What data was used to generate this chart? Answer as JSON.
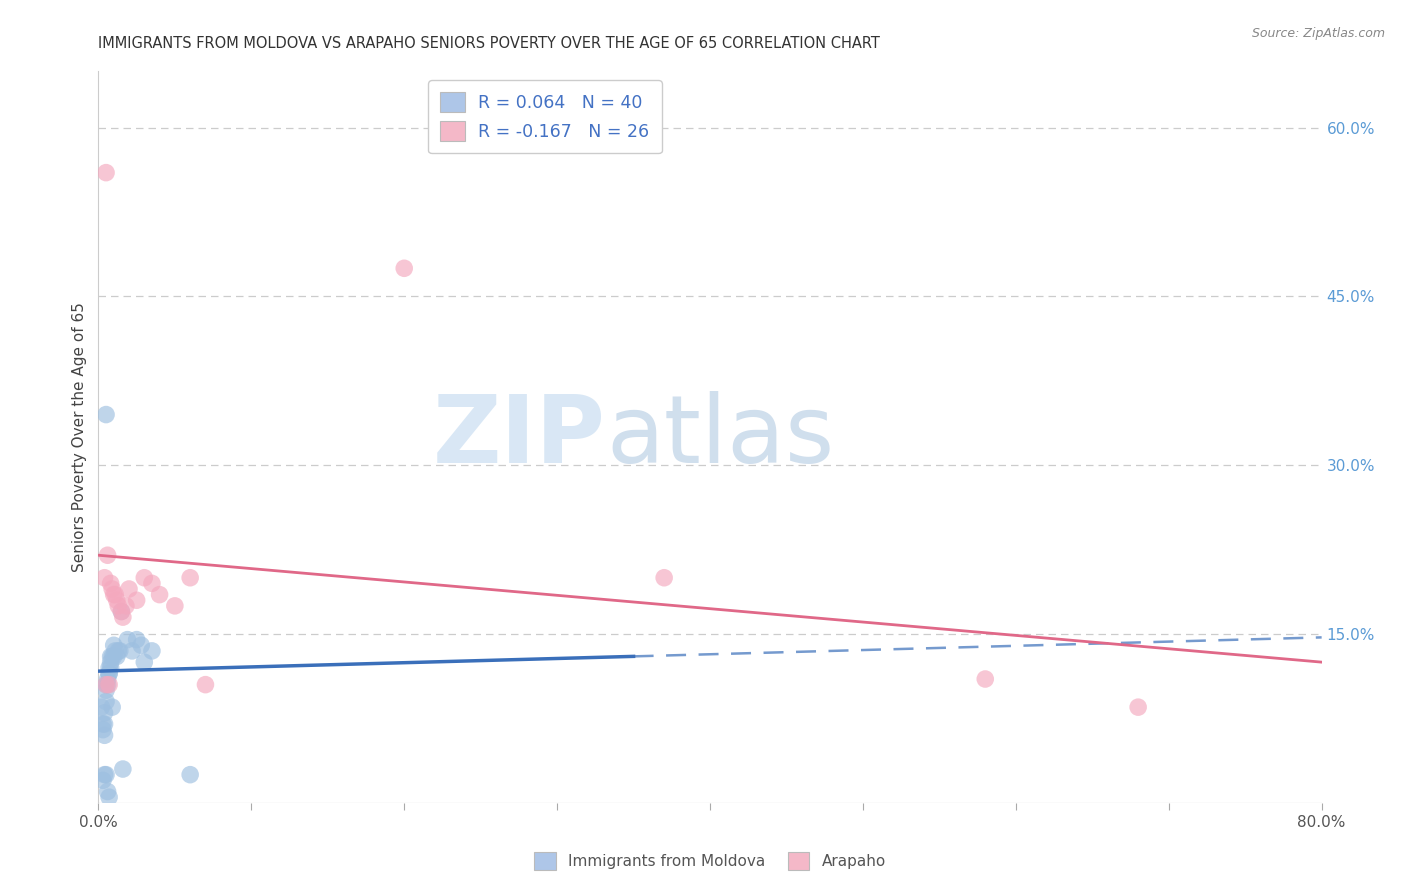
{
  "title": "IMMIGRANTS FROM MOLDOVA VS ARAPAHO SENIORS POVERTY OVER THE AGE OF 65 CORRELATION CHART",
  "source": "Source: ZipAtlas.com",
  "ylabel": "Seniors Poverty Over the Age of 65",
  "xlim": [
    0.0,
    0.8
  ],
  "ylim": [
    0.0,
    0.65
  ],
  "xticks": [
    0.0,
    0.1,
    0.2,
    0.3,
    0.4,
    0.5,
    0.6,
    0.7,
    0.8
  ],
  "xticklabels": [
    "0.0%",
    "",
    "",
    "",
    "",
    "",
    "",
    "",
    "80.0%"
  ],
  "right_yticks": [
    0.15,
    0.3,
    0.45,
    0.6
  ],
  "right_yticklabels": [
    "15.0%",
    "30.0%",
    "45.0%",
    "60.0%"
  ],
  "legend_entries": [
    {
      "label_r": "R = 0.064",
      "label_n": "N = 40",
      "color": "#aec6e8"
    },
    {
      "label_r": "R = -0.167",
      "label_n": "N = 26",
      "color": "#f4b8c8"
    }
  ],
  "legend_bottom": [
    {
      "label": "Immigrants from Moldova",
      "color": "#aec6e8"
    },
    {
      "label": "Arapaho",
      "color": "#f4b8c8"
    }
  ],
  "blue_scatter_x": [
    0.002,
    0.003,
    0.003,
    0.003,
    0.004,
    0.004,
    0.004,
    0.004,
    0.005,
    0.005,
    0.005,
    0.005,
    0.006,
    0.006,
    0.006,
    0.007,
    0.007,
    0.007,
    0.007,
    0.008,
    0.008,
    0.008,
    0.009,
    0.009,
    0.01,
    0.01,
    0.011,
    0.012,
    0.013,
    0.014,
    0.015,
    0.016,
    0.019,
    0.022,
    0.025,
    0.028,
    0.03,
    0.035,
    0.06,
    0.005
  ],
  "blue_scatter_y": [
    0.085,
    0.065,
    0.07,
    0.02,
    0.06,
    0.07,
    0.08,
    0.025,
    0.09,
    0.1,
    0.105,
    0.025,
    0.105,
    0.11,
    0.01,
    0.115,
    0.115,
    0.12,
    0.005,
    0.12,
    0.125,
    0.13,
    0.13,
    0.085,
    0.13,
    0.14,
    0.135,
    0.13,
    0.135,
    0.135,
    0.17,
    0.03,
    0.145,
    0.135,
    0.145,
    0.14,
    0.125,
    0.135,
    0.025,
    0.345
  ],
  "pink_scatter_x": [
    0.004,
    0.005,
    0.005,
    0.006,
    0.007,
    0.008,
    0.009,
    0.01,
    0.011,
    0.012,
    0.013,
    0.015,
    0.016,
    0.018,
    0.02,
    0.025,
    0.03,
    0.035,
    0.04,
    0.05,
    0.06,
    0.07,
    0.2,
    0.37,
    0.58,
    0.68
  ],
  "pink_scatter_y": [
    0.2,
    0.56,
    0.105,
    0.22,
    0.105,
    0.195,
    0.19,
    0.185,
    0.185,
    0.18,
    0.175,
    0.17,
    0.165,
    0.175,
    0.19,
    0.18,
    0.2,
    0.195,
    0.185,
    0.175,
    0.2,
    0.105,
    0.475,
    0.2,
    0.11,
    0.085
  ],
  "blue_trend": {
    "x_start": 0.0,
    "y_start": 0.117,
    "x_end": 0.8,
    "y_end": 0.147
  },
  "pink_trend": {
    "x_start": 0.0,
    "y_start": 0.22,
    "x_end": 0.8,
    "y_end": 0.125
  },
  "watermark_zip": "ZIP",
  "watermark_atlas": "atlas",
  "blue_color": "#9dbfe0",
  "pink_color": "#f4a8be",
  "blue_line_color": "#3a6fba",
  "pink_line_color": "#e06888",
  "grid_color": "#cccccc",
  "background_color": "#ffffff",
  "title_color": "#333333",
  "axis_label_color": "#444444",
  "tick_color": "#555555",
  "right_tick_color": "#5b9bd5",
  "source_color": "#888888"
}
